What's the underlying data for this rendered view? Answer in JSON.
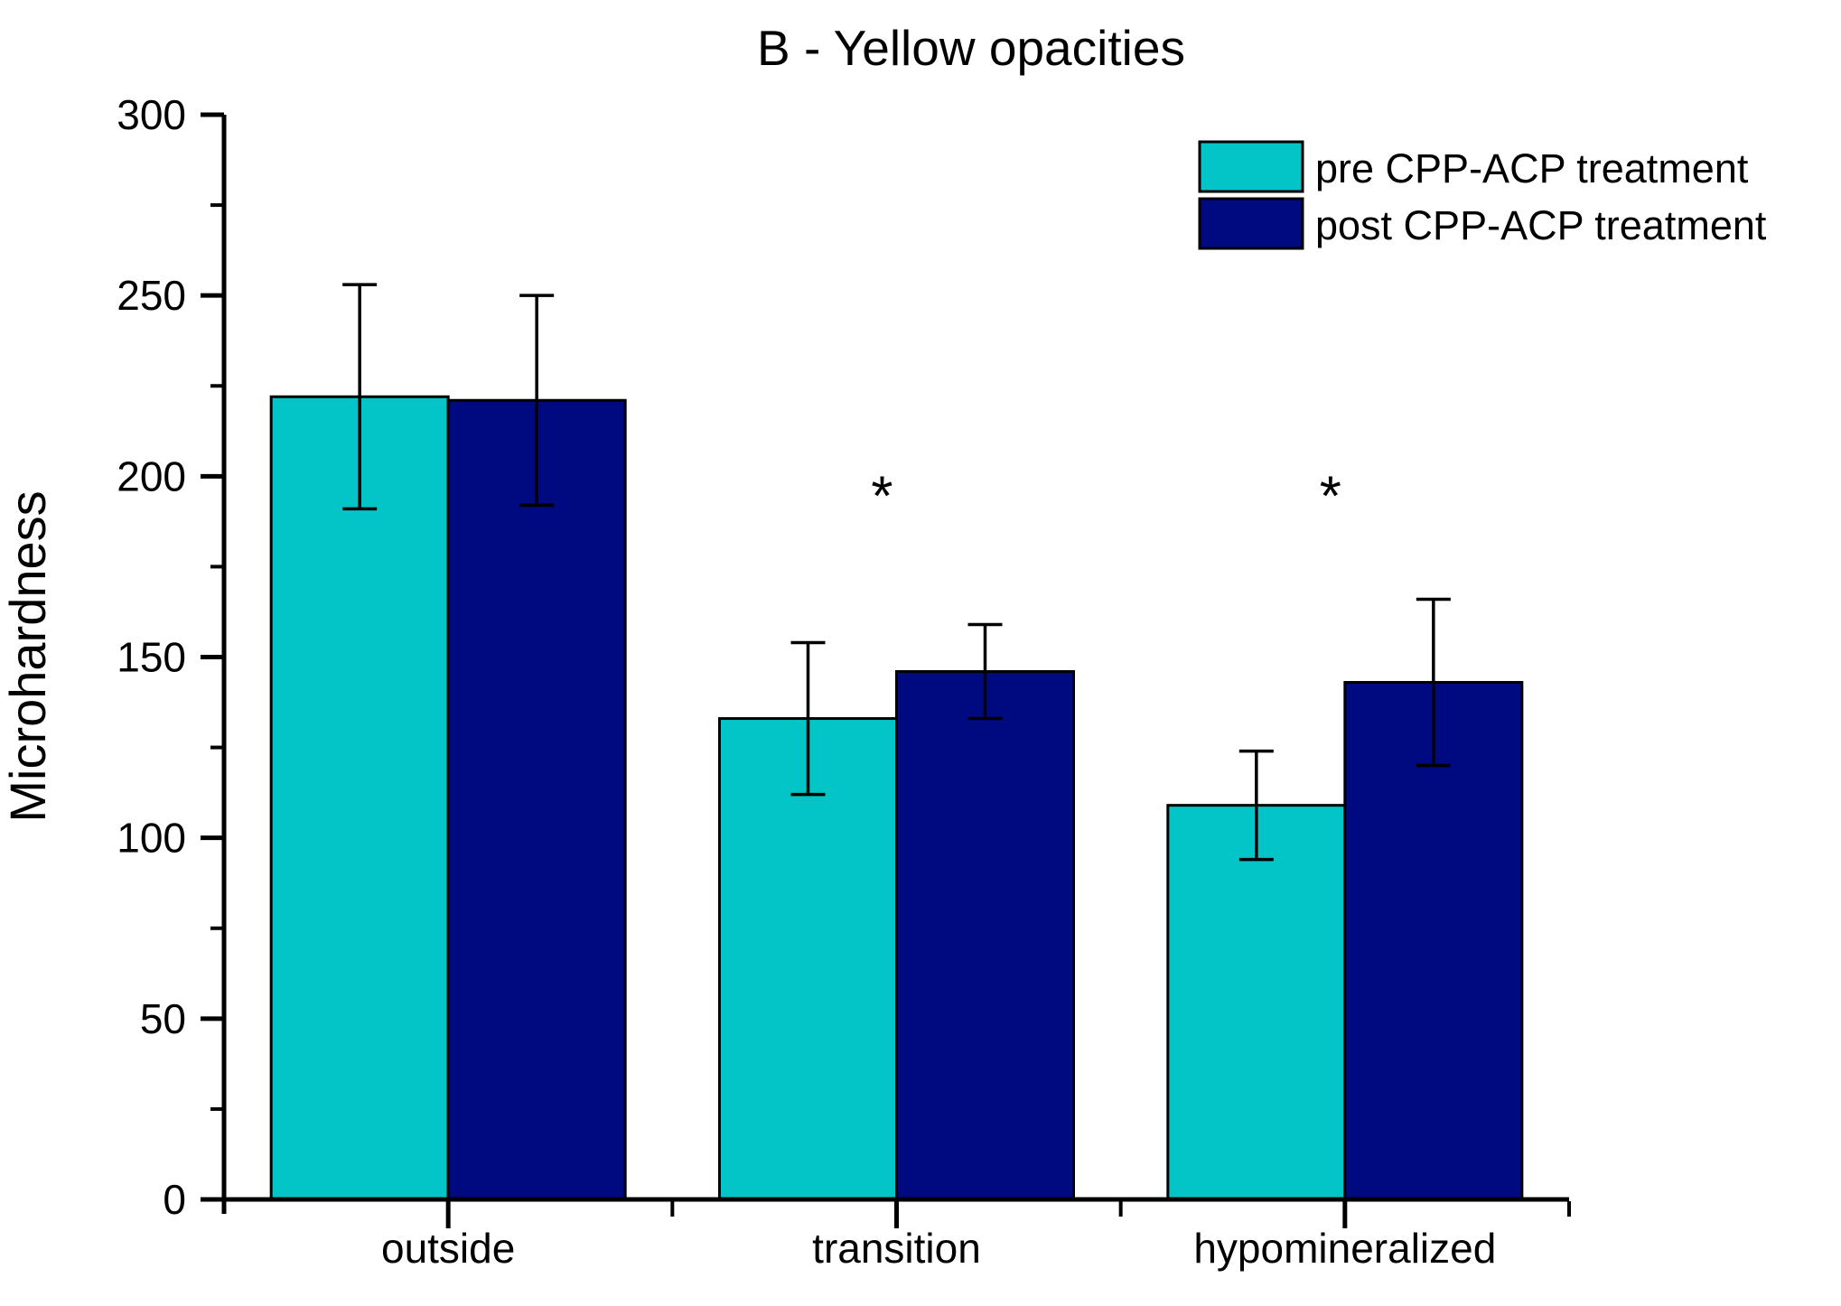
{
  "figure": {
    "title": "B - Yellow opacities"
  },
  "chart_data": {
    "type": "bar",
    "title": "B - Yellow opacities",
    "xlabel": "",
    "ylabel": "Microhardness",
    "categories": [
      "outside",
      "transition",
      "hypomineralized"
    ],
    "series": [
      {
        "name": "pre CPP-ACP treatment",
        "color": "#03C5C7",
        "values": [
          222,
          133,
          109
        ],
        "errors": [
          31,
          21,
          15
        ]
      },
      {
        "name": "post CPP-ACP treatment",
        "color": "#000A80",
        "values": [
          221,
          146,
          143
        ],
        "errors": [
          29,
          13,
          23
        ]
      }
    ],
    "ylim": [
      0,
      300
    ],
    "ytick_step": 50,
    "yminor_step": 25,
    "ytick_labels": [
      "0",
      "50",
      "100",
      "150",
      "200",
      "250",
      "300"
    ],
    "grid": false,
    "legend_position": "top-right",
    "bar_edge_color": "#000000",
    "error_bar_color": "#000000",
    "annotations": [
      {
        "text": "*",
        "category": "transition",
        "value": 200
      },
      {
        "text": "*",
        "category": "hypomineralized",
        "value": 200
      }
    ]
  }
}
